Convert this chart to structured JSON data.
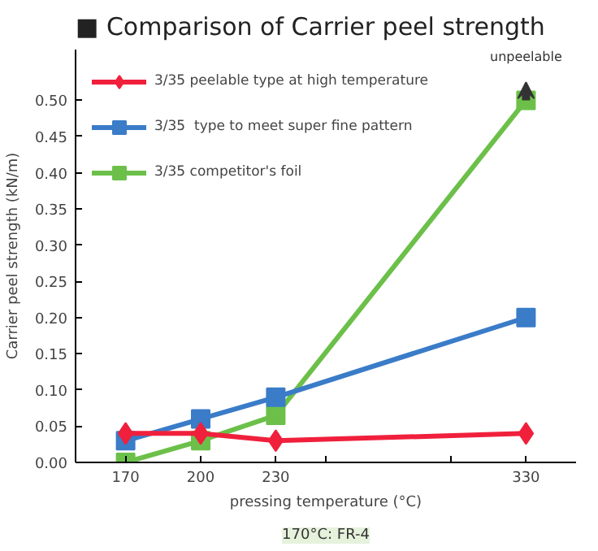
{
  "chart_data": {
    "type": "line",
    "title": "■ Comparison of Carrier peel strength",
    "xlabel": "pressing temperature (°C)",
    "ylabel": "Carrier peel strength (kN/m)",
    "x": [
      170,
      200,
      230,
      330
    ],
    "series": [
      {
        "name": "3/35 peelable type at high temperature",
        "color": "#f0203c",
        "marker": "diamond",
        "values": [
          0.04,
          0.04,
          0.03,
          0.04
        ]
      },
      {
        "name": "3/35  type to meet super fine pattern",
        "color": "#3a7cc8",
        "marker": "square",
        "values": [
          0.03,
          0.06,
          0.09,
          0.2
        ]
      },
      {
        "name": "3/35 competitor's foil",
        "color": "#6cc04a",
        "marker": "square",
        "values": [
          0.0,
          0.03,
          0.065,
          0.5
        ]
      }
    ],
    "xlim": [
      150,
      350
    ],
    "xticks": [
      170,
      200,
      230,
      {
        "value": 250,
        "label": null
      },
      {
        "value": 300,
        "label": null
      },
      330
    ],
    "ylim": [
      0,
      0.57
    ],
    "yticks": [
      {
        "value": 0,
        "label": "0.00"
      },
      {
        "value": 0.05,
        "label": "0.05"
      },
      {
        "value": 0.1,
        "label": "0.10"
      },
      {
        "value": 0.15,
        "label": "0.15"
      },
      {
        "value": 0.2,
        "label": "0.20"
      },
      {
        "value": 0.25,
        "label": "0.25"
      },
      {
        "value": 0.3,
        "label": "0.30"
      },
      {
        "value": 0.35,
        "label": "0.35"
      },
      {
        "value": 0.4,
        "label": "0.40"
      },
      {
        "value": 0.45,
        "label": "0.45"
      },
      {
        "value": 0.5,
        "label": "0.50"
      }
    ],
    "grid": false,
    "legend": "top left",
    "annotations": [
      {
        "text": "unpeelable",
        "x": 330,
        "y": 0.5
      },
      "170°C: FR-4"
    ]
  }
}
